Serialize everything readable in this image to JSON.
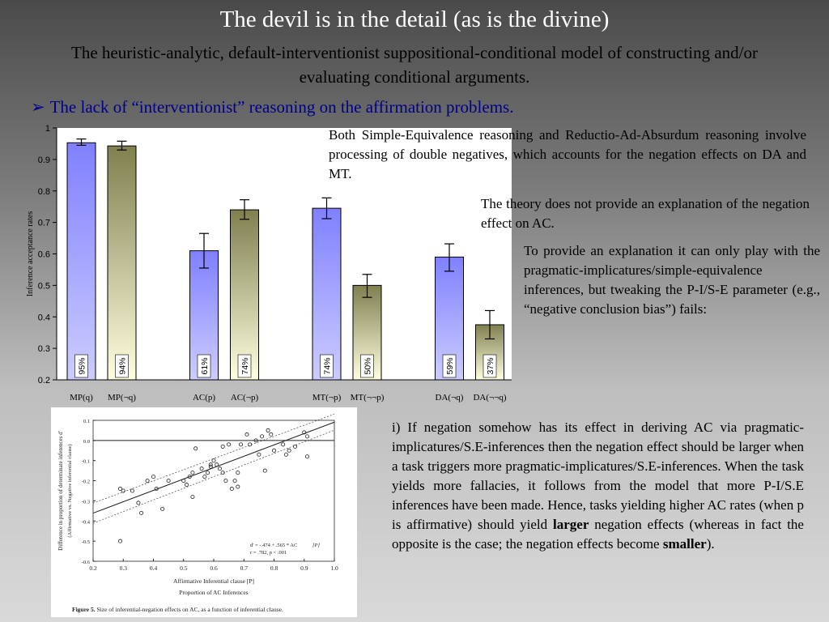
{
  "slide": {
    "title": "The devil is in the detail (as is the divine)",
    "subtitle": "The heuristic-analytic, default-interventionist suppositional-conditional model of constructing and/or evaluating conditional arguments.",
    "bullet_arrow": "➢",
    "bullet": "The lack of “interventionist” reasoning on the affirmation problems.",
    "paragraph1": "Both Simple-Equivalence reasoning and Reductio-Ad-Absurdum reasoning involve processing of double negatives, which accounts for the negation effects on DA and MT.",
    "paragraph2": "The theory does not provide an explanation of the negation effect on AC.",
    "paragraph3": "To provide an explanation it can only play with the pragmatic-implicatures/simple-equivalence inferences, but tweaking the P-I/S-E parameter (e.g., “negative conclusion bias”) fails:",
    "paragraph4_part1": "i) If negation somehow has its effect in deriving AC via pragmatic-implicatures/S.E-inferences then the negation effect should be larger when a task triggers more pragmatic-implicatures/S.E-inferences. When the task yields more fallacies, it follows from the model that more P-I/S.E inferences have been made. Hence, tasks yielding higher AC rates (when p is affirmative) should yield ",
    "paragraph4_bold1": "larger",
    "paragraph4_part2": " negation effects (whereas in fact the opposite is the case; the negation effects become ",
    "paragraph4_bold2": "smaller",
    "paragraph4_part3": ")."
  },
  "chart_data": [
    {
      "type": "bar",
      "ylabel": "Inference acceptance rates",
      "ylim": [
        0.2,
        1
      ],
      "yticks": [
        "0.2",
        "0.3",
        "0.4",
        "0.5",
        "0.6",
        "0.7",
        "0.8",
        "0.9",
        "1"
      ],
      "categories": [
        "MP(q)",
        "MP(¬q)",
        "AC(p)",
        "AC(¬p)",
        "MT(¬p)",
        "MT(¬¬p)",
        "DA(¬q)",
        "DA(¬¬q)"
      ],
      "values": [
        0.953,
        0.943,
        0.61,
        0.74,
        0.745,
        0.5,
        0.59,
        0.375
      ],
      "error_low": [
        0.945,
        0.93,
        0.555,
        0.71,
        0.712,
        0.462,
        0.545,
        0.33
      ],
      "error_high": [
        0.965,
        0.958,
        0.665,
        0.772,
        0.778,
        0.535,
        0.632,
        0.42
      ],
      "labels": [
        "95%",
        "94%",
        "61%",
        "74%",
        "74%",
        "50%",
        "59%",
        "37%"
      ],
      "group_of_category": [
        0,
        0,
        1,
        1,
        2,
        2,
        3,
        3
      ],
      "colors": {
        "affirmative_top": "#8080ff",
        "affirmative_bottom": "#ccccff",
        "negative_top": "#7f7f4f",
        "negative_bottom": "#ffffe0"
      }
    },
    {
      "type": "scatter",
      "xlabel": "Affirmative Inferential clause [P]",
      "xlabel2": "Proportion of AC Inferences",
      "ylabel": "Difference in proportion of determinate inferences d'",
      "ylabel2": "(Affirmative vs. Negative inferential clause)",
      "xlim": [
        0.2,
        1.0
      ],
      "ylim": [
        -0.6,
        0.1
      ],
      "xticks": [
        "0.2",
        "0.3",
        "0.4",
        "0.5",
        "0.6",
        "0.7",
        "0.8",
        "0.9",
        "1.0"
      ],
      "yticks": [
        "0.1",
        "0.0",
        "-0.1",
        "-0.2",
        "-0.3",
        "-0.4",
        "-0.5",
        "-0.6"
      ],
      "equation": "d' = -.474 + .565 * AC",
      "stats": "r = .782, p < .001",
      "legend_tag": "[P]",
      "regression": {
        "intercept": -0.474,
        "slope": 0.565
      },
      "caption_label": "Figure 5.",
      "caption": "Size of inferential-negation effects on AC, as a function of inferential clause.",
      "points": [
        [
          0.29,
          -0.24
        ],
        [
          0.3,
          -0.25
        ],
        [
          0.29,
          -0.5
        ],
        [
          0.33,
          -0.25
        ],
        [
          0.35,
          -0.31
        ],
        [
          0.36,
          -0.36
        ],
        [
          0.38,
          -0.2
        ],
        [
          0.4,
          -0.18
        ],
        [
          0.41,
          -0.24
        ],
        [
          0.43,
          -0.34
        ],
        [
          0.45,
          -0.2
        ],
        [
          0.5,
          -0.2
        ],
        [
          0.51,
          -0.22
        ],
        [
          0.52,
          -0.18
        ],
        [
          0.53,
          -0.16
        ],
        [
          0.53,
          -0.28
        ],
        [
          0.54,
          -0.04
        ],
        [
          0.56,
          -0.14
        ],
        [
          0.57,
          -0.18
        ],
        [
          0.58,
          -0.16
        ],
        [
          0.59,
          -0.13
        ],
        [
          0.59,
          -0.12
        ],
        [
          0.6,
          -0.1
        ],
        [
          0.61,
          -0.12
        ],
        [
          0.62,
          -0.14
        ],
        [
          0.63,
          -0.03
        ],
        [
          0.63,
          -0.16
        ],
        [
          0.64,
          -0.2
        ],
        [
          0.65,
          -0.02
        ],
        [
          0.66,
          -0.24
        ],
        [
          0.67,
          -0.2
        ],
        [
          0.68,
          -0.23
        ],
        [
          0.68,
          -0.16
        ],
        [
          0.69,
          -0.02
        ],
        [
          0.71,
          0.03
        ],
        [
          0.72,
          -0.02
        ],
        [
          0.74,
          0.0
        ],
        [
          0.75,
          -0.07
        ],
        [
          0.76,
          0.02
        ],
        [
          0.77,
          -0.15
        ],
        [
          0.78,
          0.05
        ],
        [
          0.79,
          0.03
        ],
        [
          0.8,
          -0.05
        ],
        [
          0.83,
          -0.02
        ],
        [
          0.84,
          -0.07
        ],
        [
          0.85,
          -0.05
        ],
        [
          0.87,
          -0.03
        ],
        [
          0.9,
          0.04
        ],
        [
          0.91,
          -0.08
        ],
        [
          0.91,
          0.02
        ]
      ]
    }
  ]
}
